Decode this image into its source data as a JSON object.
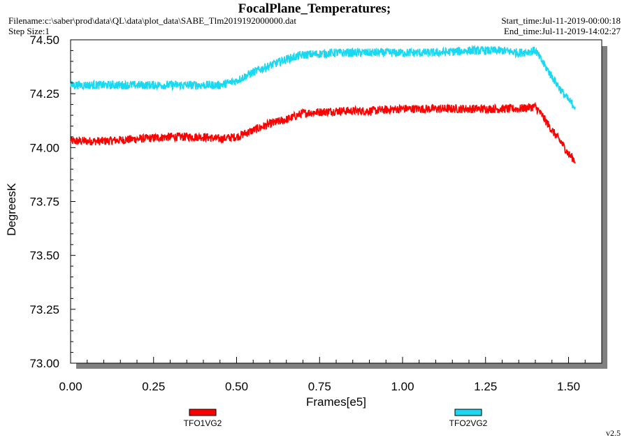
{
  "header": {
    "title": "FocalPlane_Temperatures;",
    "filename": "Filename:c:\\saber\\prod\\data\\QL\\data\\plot_data\\SABE_Tlm2019192000000.dat",
    "step_size": "Step Size:1",
    "start_time": "Start_time:Jul-11-2019-00:00:18",
    "end_time": "End_time:Jul-11-2019-14:02:27"
  },
  "footer": {
    "version": "v2.5"
  },
  "colors": {
    "TFO1VG2": "#ff0000",
    "TFO2VG2": "#1ad8f0"
  },
  "chart_data": {
    "type": "line",
    "title": "FocalPlane_Temperatures;",
    "xlabel": "Frames[e5]",
    "ylabel": "DegreesK",
    "xlim": [
      0.0,
      1.6
    ],
    "ylim": [
      73.0,
      74.5
    ],
    "x_ticks": [
      "0.00",
      "0.25",
      "0.50",
      "0.75",
      "1.00",
      "1.25",
      "1.50"
    ],
    "y_ticks": [
      "73.00",
      "73.25",
      "73.50",
      "73.75",
      "74.00",
      "74.25",
      "74.50"
    ],
    "grid": false,
    "legend": "bottom",
    "series": [
      {
        "name": "TFO1VG2",
        "color": "#ff0000",
        "noise": 0.02,
        "x": [
          0.0,
          0.1,
          0.2,
          0.3,
          0.4,
          0.45,
          0.5,
          0.55,
          0.6,
          0.65,
          0.7,
          0.8,
          0.9,
          1.0,
          1.1,
          1.2,
          1.3,
          1.35,
          1.4,
          1.42,
          1.45,
          1.48,
          1.5,
          1.52
        ],
        "y": [
          74.03,
          74.03,
          74.04,
          74.05,
          74.05,
          74.04,
          74.05,
          74.08,
          74.11,
          74.13,
          74.16,
          74.17,
          74.17,
          74.18,
          74.18,
          74.18,
          74.18,
          74.18,
          74.19,
          74.15,
          74.08,
          74.02,
          73.97,
          73.94
        ]
      },
      {
        "name": "TFO2VG2",
        "color": "#1ad8f0",
        "noise": 0.02,
        "x": [
          0.0,
          0.1,
          0.2,
          0.3,
          0.4,
          0.45,
          0.5,
          0.55,
          0.6,
          0.65,
          0.7,
          0.8,
          0.9,
          1.0,
          1.1,
          1.2,
          1.3,
          1.35,
          1.4,
          1.42,
          1.45,
          1.48,
          1.5,
          1.52
        ],
        "y": [
          74.29,
          74.29,
          74.29,
          74.29,
          74.29,
          74.29,
          74.31,
          74.35,
          74.38,
          74.41,
          74.43,
          74.44,
          74.44,
          74.44,
          74.44,
          74.45,
          74.45,
          74.44,
          74.45,
          74.4,
          74.33,
          74.26,
          74.22,
          74.19
        ]
      }
    ]
  }
}
